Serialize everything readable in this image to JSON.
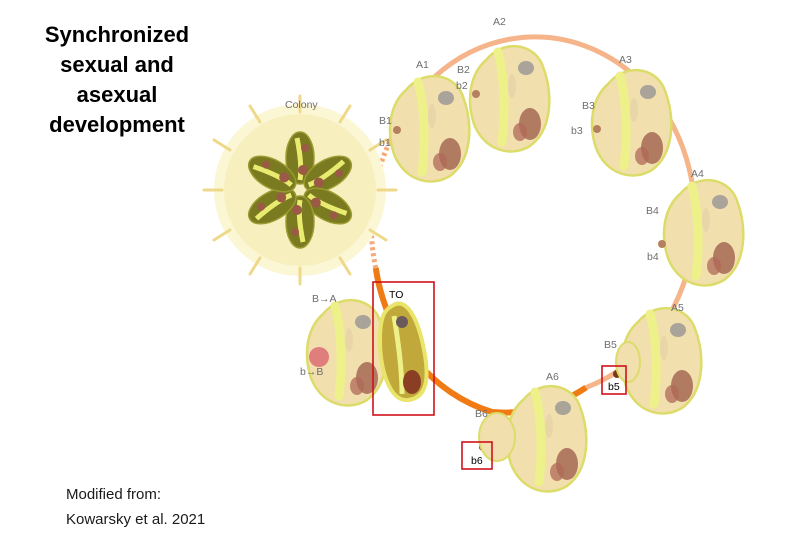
{
  "title": "Synchronized\nsexual and\nasexual\ndevelopment",
  "source": {
    "line1": "Modified from:",
    "line2": "Kowarsky et al. 2021"
  },
  "colony_label": "Colony",
  "stage_labels": {
    "A1": "A1",
    "A2": "A2",
    "A3": "A3",
    "A4": "A4",
    "A5": "A5",
    "A6": "A6",
    "B1": "B1",
    "B2": "B2",
    "B3": "B3",
    "B4": "B4",
    "B5": "B5",
    "B6": "B6",
    "b1": "b1",
    "b2": "b2",
    "b3": "b3",
    "b4": "b4",
    "b5": "b5",
    "b6": "b6",
    "TO": "TO",
    "BA": "B→A",
    "bB": "b→B"
  },
  "colors": {
    "ring": "#f5b48a",
    "ring_active": "#f07a14",
    "highlight_box": "#d0121b",
    "zooid_fill": "#f2dfae",
    "zooid_edge": "#dcdc6a",
    "stripe": "#eef08a",
    "organ": "#9b5a48"
  }
}
